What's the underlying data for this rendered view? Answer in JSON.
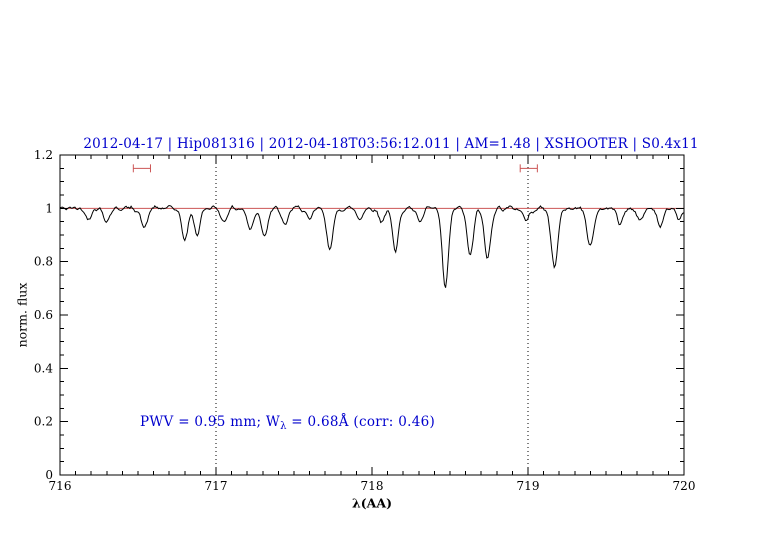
{
  "title": "2012-04-17 | Hip081316 | 2012-04-18T03:56:12.011 | AM=1.48 | XSHOOTER | S0.4x11",
  "colors": {
    "title": "#0000cd",
    "annotation": "#0000cd",
    "spectrum": "#000000",
    "model_line": "#cc5555",
    "interval_marker": "#cc5555",
    "frame": "#000000"
  },
  "annotation": {
    "part1": "PWV = 0.95 mm; W",
    "sub": "λ",
    "part2": " = 0.68Å (corr: 0.46)"
  },
  "chart_data": {
    "type": "line",
    "title": "2012-04-17 | Hip081316 | 2012-04-18T03:56:12.011 | AM=1.48 | XSHOOTER | S0.4x11",
    "xlabel": "λ(AA)",
    "ylabel": "norm. flux",
    "xlim": [
      716,
      720
    ],
    "ylim": [
      0,
      1.2
    ],
    "grid": false,
    "x_major_ticks": [
      716,
      717,
      718,
      719,
      720
    ],
    "x_tick_labels": [
      "716",
      "717",
      "718",
      "719",
      "720"
    ],
    "y_major_ticks": [
      0,
      0.2,
      0.4,
      0.6,
      0.8,
      1,
      1.2
    ],
    "y_tick_labels": [
      "0",
      "0.2",
      "0.4",
      "0.6",
      "0.8",
      "1",
      "1.2"
    ],
    "x_minor_step": 0.1,
    "y_minor_step": 0.05,
    "dotted_vlines": [
      717,
      719
    ],
    "model_line_y": 1.0,
    "interval_markers": [
      {
        "x1": 716.47,
        "x2": 716.58,
        "y": 1.15
      },
      {
        "x1": 718.95,
        "x2": 719.06,
        "y": 1.15
      }
    ],
    "series": [
      {
        "name": "observed spectrum",
        "color": "#000000",
        "style": "solid"
      },
      {
        "name": "continuum / model",
        "color": "#cc5555",
        "style": "solid"
      }
    ],
    "noise": {
      "seed": 42,
      "amplitude": 0.009,
      "step": 0.008
    },
    "absorption_lines": [
      [
        716.18,
        0.035,
        0.02
      ],
      [
        716.3,
        0.045,
        0.02
      ],
      [
        716.54,
        0.075,
        0.02
      ],
      [
        716.8,
        0.12,
        0.02
      ],
      [
        716.88,
        0.1,
        0.018
      ],
      [
        717.05,
        0.05,
        0.018
      ],
      [
        717.22,
        0.08,
        0.02
      ],
      [
        717.31,
        0.1,
        0.02
      ],
      [
        717.44,
        0.065,
        0.02
      ],
      [
        717.6,
        0.05,
        0.018
      ],
      [
        717.73,
        0.145,
        0.022
      ],
      [
        717.92,
        0.04,
        0.018
      ],
      [
        718.06,
        0.05,
        0.018
      ],
      [
        718.15,
        0.17,
        0.018
      ],
      [
        718.31,
        0.055,
        0.018
      ],
      [
        718.47,
        0.3,
        0.02
      ],
      [
        718.63,
        0.18,
        0.02
      ],
      [
        718.74,
        0.19,
        0.02
      ],
      [
        718.99,
        0.045,
        0.02
      ],
      [
        719.17,
        0.215,
        0.022
      ],
      [
        719.4,
        0.14,
        0.022
      ],
      [
        719.59,
        0.06,
        0.018
      ],
      [
        719.72,
        0.05,
        0.018
      ],
      [
        719.85,
        0.07,
        0.018
      ],
      [
        719.97,
        0.05,
        0.015
      ]
    ]
  }
}
